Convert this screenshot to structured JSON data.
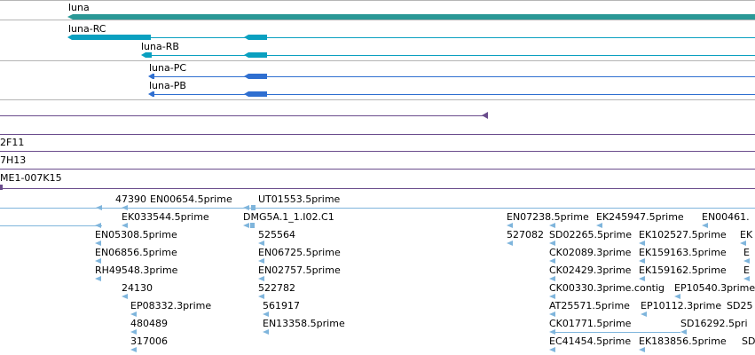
{
  "colors": {
    "gene_teal": "#2a9896",
    "transcript_cyan": "#0aa0c0",
    "cds_blue": "#2f6fd0",
    "track_purple": "#6a4c8c",
    "est_blue": "#7fb5dc",
    "divider_gray": "#b5b5b5"
  },
  "gene_track": {
    "gene": "luna",
    "transcripts": [
      "luna-RC",
      "luna-RB",
      "luna-PC",
      "luna-PB"
    ]
  },
  "clone_track": {
    "labels": [
      "2F11",
      "7H13",
      "ME1-007K15"
    ]
  },
  "est_track": {
    "labels": [
      "47390",
      "EN00654.5prime",
      "UT01553.5prime",
      "EK033544.5prime",
      "DMG5A.1_1.I02.C1",
      "EN05308.5prime",
      "525564",
      "EN06856.5prime",
      "EN06725.5prime",
      "RH49548.3prime",
      "EN02757.5prime",
      "24130",
      "522782",
      "EP08332.3prime",
      "561917",
      "480489",
      "EN13358.5prime",
      "317006",
      "EN07238.5prime",
      "EK245947.5prime",
      "EN00461.",
      "527082",
      "SD02265.5prime",
      "EK102527.5prime",
      "EK",
      "CK02089.3prime",
      "EK159163.5prime",
      "E",
      "CK02429.3prime",
      "EK159162.5prime",
      "E",
      "CK00330.3prime.contig",
      "EP10540.3prime",
      "AT25571.5prime",
      "EP10112.3prime",
      "SD25",
      "CK01771.5prime",
      "SD16292.5pri",
      "EC41454.5prime",
      "EK183856.5prime",
      "SD"
    ]
  }
}
